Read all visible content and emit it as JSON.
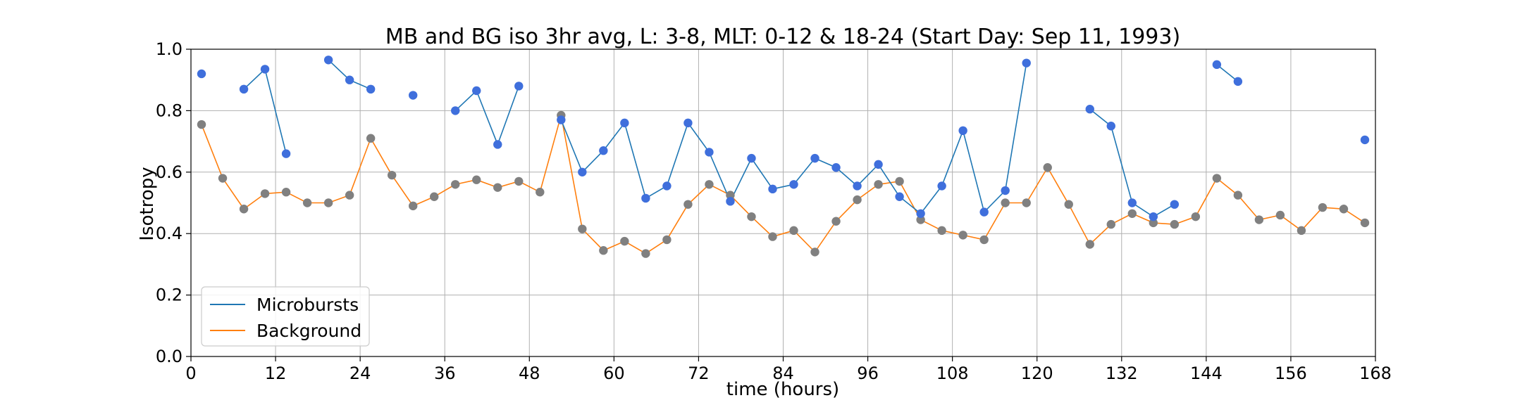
{
  "chart_data": {
    "type": "line",
    "title": "MB and BG iso 3hr avg, L: 3-8, MLT: 0-12 & 18-24 (Start Day: Sep 11, 1993)",
    "xlabel": "time (hours)",
    "ylabel": "Isotropy",
    "xlim": [
      0,
      168
    ],
    "ylim": [
      0.0,
      1.0
    ],
    "xticks": [
      0,
      12,
      24,
      36,
      48,
      60,
      72,
      84,
      96,
      108,
      120,
      132,
      144,
      156,
      168
    ],
    "yticks": [
      0.0,
      0.2,
      0.4,
      0.6,
      0.8,
      1.0
    ],
    "ytick_labels": [
      "0.0",
      "0.2",
      "0.4",
      "0.6",
      "0.8",
      "1.0"
    ],
    "grid": true,
    "legend_position": "lower-left",
    "series": [
      {
        "name": "Microbursts",
        "line_color": "#1f77b4",
        "marker_color": "#3f6fdc",
        "points": [
          [
            1.5,
            0.92
          ],
          [
            7.5,
            0.87
          ],
          [
            10.5,
            0.935
          ],
          [
            13.5,
            0.66
          ],
          [
            19.5,
            0.965
          ],
          [
            22.5,
            0.9
          ],
          [
            25.5,
            0.87
          ],
          [
            31.5,
            0.85
          ],
          [
            37.5,
            0.8
          ],
          [
            40.5,
            0.865
          ],
          [
            43.5,
            0.69
          ],
          [
            46.5,
            0.88
          ],
          [
            52.5,
            0.77
          ],
          [
            55.5,
            0.6
          ],
          [
            58.5,
            0.67
          ],
          [
            61.5,
            0.76
          ],
          [
            64.5,
            0.515
          ],
          [
            67.5,
            0.555
          ],
          [
            70.5,
            0.76
          ],
          [
            73.5,
            0.665
          ],
          [
            76.5,
            0.505
          ],
          [
            79.5,
            0.645
          ],
          [
            82.5,
            0.545
          ],
          [
            85.5,
            0.56
          ],
          [
            88.5,
            0.645
          ],
          [
            91.5,
            0.615
          ],
          [
            94.5,
            0.555
          ],
          [
            97.5,
            0.625
          ],
          [
            100.5,
            0.52
          ],
          [
            103.5,
            0.465
          ],
          [
            106.5,
            0.555
          ],
          [
            109.5,
            0.735
          ],
          [
            112.5,
            0.47
          ],
          [
            115.5,
            0.54
          ],
          [
            118.5,
            0.955
          ],
          [
            127.5,
            0.805
          ],
          [
            130.5,
            0.75
          ],
          [
            133.5,
            0.5
          ],
          [
            136.5,
            0.455
          ],
          [
            139.5,
            0.495
          ],
          [
            145.5,
            0.95
          ],
          [
            148.5,
            0.895
          ],
          [
            166.5,
            0.705
          ]
        ],
        "segments": [
          [
            0
          ],
          [
            1,
            2,
            3
          ],
          [
            4,
            5,
            6
          ],
          [
            7
          ],
          [
            8,
            9,
            10,
            11
          ],
          [
            12,
            13,
            14,
            15,
            16,
            17,
            18,
            19,
            20,
            21,
            22,
            23,
            24,
            25,
            26,
            27,
            28,
            29,
            30,
            31,
            32,
            33,
            34
          ],
          [
            35,
            36,
            37,
            38,
            39
          ],
          [
            40,
            41
          ],
          [
            42
          ]
        ]
      },
      {
        "name": "Background",
        "line_color": "#ff7f0e",
        "marker_color": "#808080",
        "points": [
          [
            1.5,
            0.755
          ],
          [
            4.5,
            0.58
          ],
          [
            7.5,
            0.48
          ],
          [
            10.5,
            0.53
          ],
          [
            13.5,
            0.535
          ],
          [
            16.5,
            0.5
          ],
          [
            19.5,
            0.5
          ],
          [
            22.5,
            0.525
          ],
          [
            25.5,
            0.71
          ],
          [
            28.5,
            0.59
          ],
          [
            31.5,
            0.49
          ],
          [
            34.5,
            0.52
          ],
          [
            37.5,
            0.56
          ],
          [
            40.5,
            0.575
          ],
          [
            43.5,
            0.55
          ],
          [
            46.5,
            0.57
          ],
          [
            49.5,
            0.535
          ],
          [
            52.5,
            0.785
          ],
          [
            55.5,
            0.415
          ],
          [
            58.5,
            0.345
          ],
          [
            61.5,
            0.375
          ],
          [
            64.5,
            0.335
          ],
          [
            67.5,
            0.38
          ],
          [
            70.5,
            0.495
          ],
          [
            73.5,
            0.56
          ],
          [
            76.5,
            0.525
          ],
          [
            79.5,
            0.455
          ],
          [
            82.5,
            0.39
          ],
          [
            85.5,
            0.41
          ],
          [
            88.5,
            0.34
          ],
          [
            91.5,
            0.44
          ],
          [
            94.5,
            0.51
          ],
          [
            97.5,
            0.56
          ],
          [
            100.5,
            0.57
          ],
          [
            103.5,
            0.445
          ],
          [
            106.5,
            0.41
          ],
          [
            109.5,
            0.395
          ],
          [
            112.5,
            0.38
          ],
          [
            115.5,
            0.5
          ],
          [
            118.5,
            0.5
          ],
          [
            121.5,
            0.615
          ],
          [
            124.5,
            0.495
          ],
          [
            127.5,
            0.365
          ],
          [
            130.5,
            0.43
          ],
          [
            133.5,
            0.465
          ],
          [
            136.5,
            0.435
          ],
          [
            139.5,
            0.43
          ],
          [
            142.5,
            0.455
          ],
          [
            145.5,
            0.58
          ],
          [
            148.5,
            0.525
          ],
          [
            151.5,
            0.445
          ],
          [
            154.5,
            0.46
          ],
          [
            157.5,
            0.41
          ],
          [
            160.5,
            0.485
          ],
          [
            163.5,
            0.48
          ],
          [
            166.5,
            0.435
          ]
        ],
        "segments": "all"
      }
    ]
  }
}
